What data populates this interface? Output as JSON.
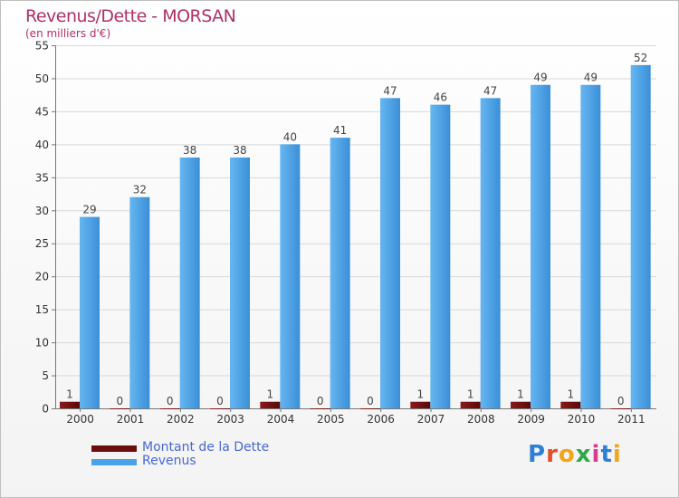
{
  "chart_data": {
    "type": "bar",
    "title": "Revenus/Dette - MORSAN",
    "subtitle": "(en milliers d'€)",
    "categories": [
      "2000",
      "2001",
      "2002",
      "2003",
      "2004",
      "2005",
      "2006",
      "2007",
      "2008",
      "2009",
      "2010",
      "2011"
    ],
    "series": [
      {
        "name": "Montant de la Dette",
        "color": "#6b0d0d",
        "values": [
          1,
          0,
          0,
          0,
          1,
          0,
          0,
          1,
          1,
          1,
          1,
          0
        ]
      },
      {
        "name": "Revenus",
        "color": "#4aa3e8",
        "values": [
          29,
          32,
          38,
          38,
          40,
          41,
          47,
          46,
          47,
          49,
          49,
          52
        ]
      }
    ],
    "yticks": [
      0,
      5,
      10,
      15,
      20,
      25,
      30,
      35,
      40,
      45,
      50,
      55
    ],
    "ylim": [
      0,
      55
    ],
    "grid": true,
    "legend": "bottom-left"
  },
  "logo": {
    "text": "Proxiti",
    "letters": [
      "P",
      "r",
      "o",
      "x",
      "i",
      "t",
      "i"
    ],
    "colors": [
      "#2e7fd6",
      "#e64b2c",
      "#f2a51a",
      "#2fa84a",
      "#d43f8d",
      "#2e7fd6",
      "#f2a51a"
    ]
  }
}
